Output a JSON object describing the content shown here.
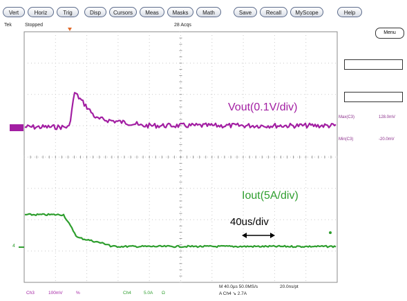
{
  "toolbar": {
    "buttons": [
      "Vert",
      "Horiz",
      "Trig",
      "Disp",
      "Cursors",
      "Meas",
      "Masks",
      "Math",
      "Save",
      "Recall",
      "MyScope",
      "Help"
    ]
  },
  "status": {
    "brand": "Tek",
    "state": "Stopped",
    "acqs": "28 Acqs"
  },
  "side": {
    "menu_label": "Menu",
    "meas1_label": "Max(C3)",
    "meas1_value": "128.0mV",
    "meas2_label": "Min(C3)",
    "meas2_value": "-20.0mV"
  },
  "traces": {
    "vout_label": "Vout(0.1V/div)",
    "iout_label": "Iout(5A/div)",
    "timebase_label": "40us/div",
    "ch4_marker": "4",
    "vout_color": "#a21ea2",
    "iout_color": "#2e9e2e"
  },
  "bottom": {
    "ch3": "Ch3",
    "ch3_scale": "100mV",
    "ch3_coupling": "%",
    "ch4": "Ch4",
    "ch4_scale": "5.0A",
    "ch4_coupling": "Ω",
    "horiz": "M 40.0µs 50.0MS/s",
    "per_pt": "20.0ns/pt",
    "trigger": "A  Ch4  ↘  2.7A"
  }
}
